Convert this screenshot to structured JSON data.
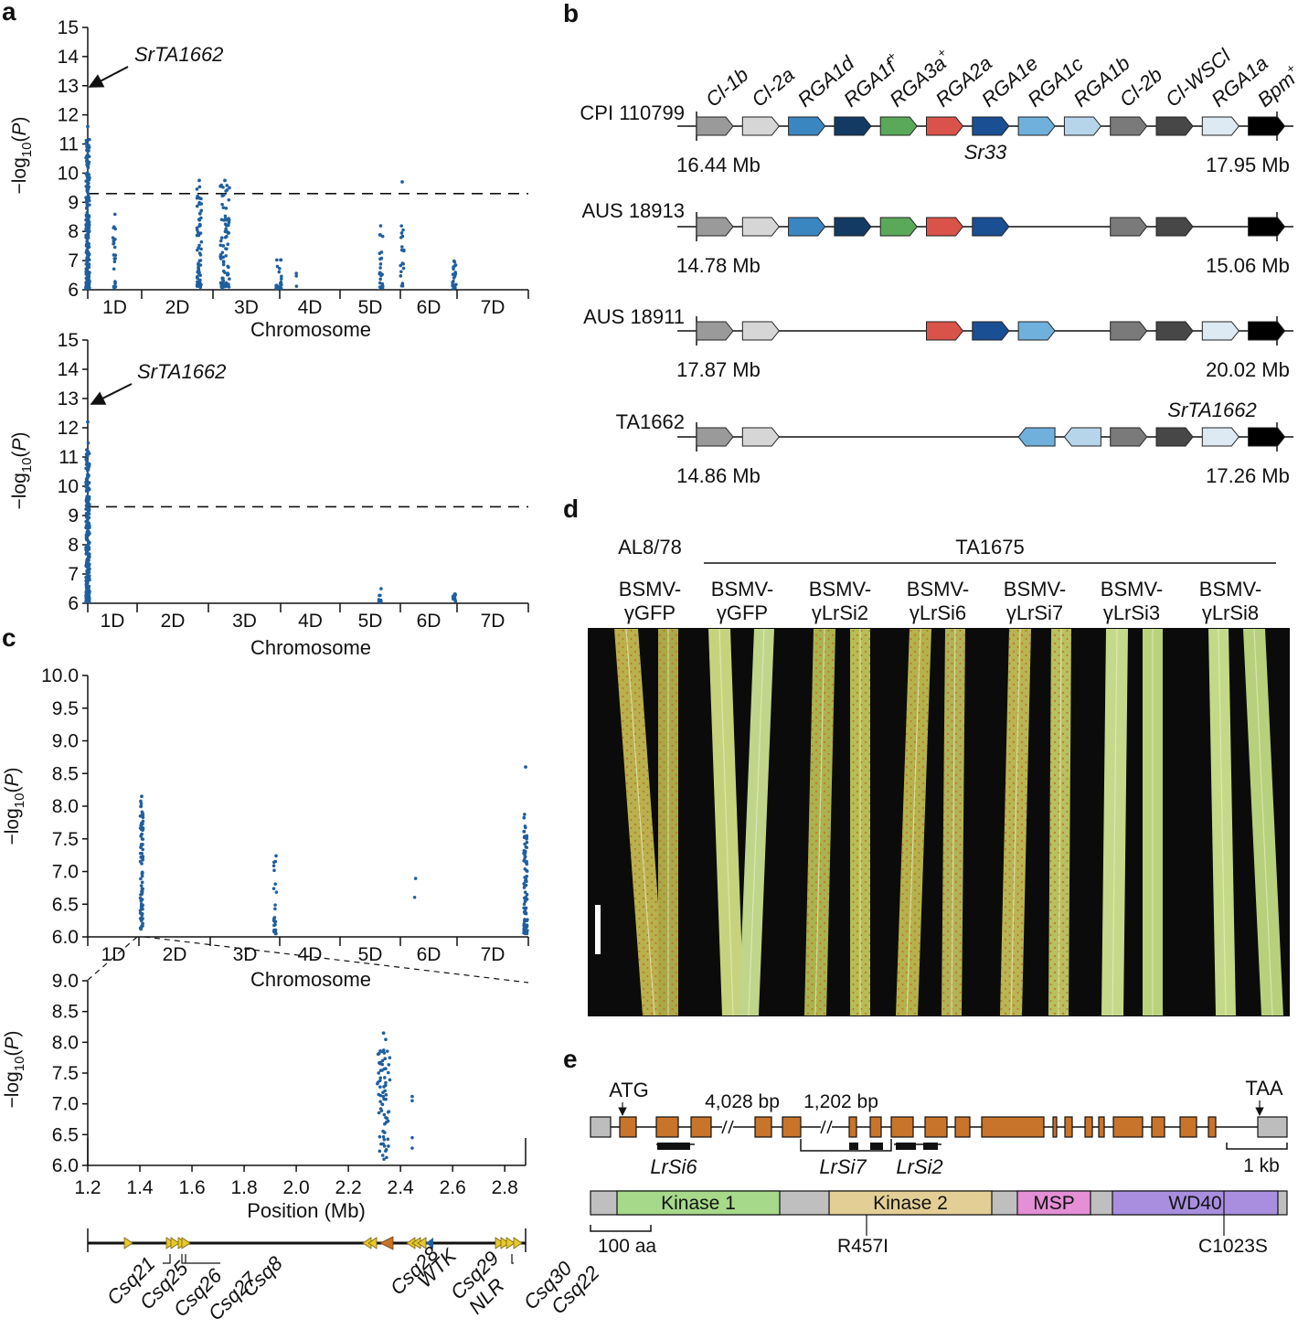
{
  "panels": {
    "a": "a",
    "b": "b",
    "c": "c",
    "d": "d",
    "e": "e"
  },
  "colors": {
    "point": "#1f5fa0",
    "orange": "#c8742a",
    "yellow": "#e6c830"
  },
  "panel_a": {
    "top": {
      "ylabel": "−log10(P)",
      "ylim": [
        6,
        15
      ],
      "yticks": [
        "6",
        "7",
        "8",
        "9",
        "10",
        "11",
        "12",
        "13",
        "14",
        "15"
      ],
      "threshold": 9.3,
      "annotation": "SrTA1662",
      "xlabel": "Chromosome",
      "chromosomes": [
        "1D",
        "2D",
        "3D",
        "4D",
        "5D",
        "6D",
        "7D"
      ]
    },
    "bottom": {
      "ylabel": "−log10(P)",
      "ylim": [
        6,
        15
      ],
      "yticks": [
        "6",
        "7",
        "8",
        "9",
        "10",
        "11",
        "12",
        "13",
        "14",
        "15"
      ],
      "threshold": 9.3,
      "annotation": "SrTA1662",
      "xlabel": "Chromosome",
      "chromosomes": [
        "1D",
        "2D",
        "3D",
        "4D",
        "5D",
        "6D",
        "7D"
      ]
    }
  },
  "panel_c": {
    "top": {
      "ylabel": "−log10(P)",
      "ylim": [
        6.0,
        10.0
      ],
      "yticks": [
        "6.0",
        "6.5",
        "7.0",
        "7.5",
        "8.0",
        "8.5",
        "9.0",
        "9.5",
        "10.0"
      ],
      "xlabel": "Chromosome",
      "chromosomes": [
        "1D",
        "2D",
        "3D",
        "4D",
        "5D",
        "6D",
        "7D"
      ]
    },
    "bottom": {
      "ylabel": "−log10(P)",
      "ylim": [
        6.0,
        9.0
      ],
      "yticks": [
        "6.0",
        "6.5",
        "7.0",
        "7.5",
        "8.0",
        "8.5",
        "9.0"
      ],
      "xlabel": "Position (Mb)",
      "xticks": [
        "1.2",
        "1.4",
        "1.6",
        "1.8",
        "2.0",
        "2.2",
        "2.4",
        "2.6",
        "2.8"
      ],
      "genes": [
        "Csq21",
        "Csq25",
        "Csq26",
        "Csq27",
        "Csq8",
        "Csq28",
        "WTK",
        "Csq29",
        "NLR",
        "Csq30",
        "Csq22"
      ]
    }
  },
  "panel_b": {
    "gene_names": [
      "Cl-1b",
      "Cl-2a",
      "RGA1d",
      "RGA1f",
      "RGA3a",
      "RGA2a",
      "RGA1e",
      "RGA1c",
      "RGA1b",
      "Cl-2b",
      "Cl-WSCl",
      "RGA1a",
      "Bpm"
    ],
    "plus_mark": "+",
    "sr33": "Sr33",
    "srta": "SrTA1662",
    "haplotypes": [
      {
        "name": "CPI 110799",
        "left": "16.44 Mb",
        "right": "17.95 Mb"
      },
      {
        "name": "AUS 18913",
        "left": "14.78 Mb",
        "right": "15.06 Mb"
      },
      {
        "name": "AUS 18911",
        "left": "17.87 Mb",
        "right": "20.02 Mb"
      },
      {
        "name": "TA1662",
        "left": "14.86 Mb",
        "right": "17.26 Mb"
      }
    ],
    "gene_colors": [
      "#9a9a9a",
      "#d6d6d6",
      "#3a86c0",
      "#123a63",
      "#5aa95a",
      "#d9534a",
      "#1a4f94",
      "#6fb0dc",
      "#b7d5ea",
      "#7a7a7a",
      "#474747",
      "#dde9f3",
      "#000000"
    ]
  },
  "panel_d": {
    "line1": "AL8/78",
    "line2": "TA1675",
    "constructs": [
      {
        "top": "BSMV-",
        "bottom": "γGFP"
      },
      {
        "top": "BSMV-",
        "bottom": "γGFP"
      },
      {
        "top": "BSMV-",
        "bottom": "γLrSi2"
      },
      {
        "top": "BSMV-",
        "bottom": "γLrSi6"
      },
      {
        "top": "BSMV-",
        "bottom": "γLrSi7"
      },
      {
        "top": "BSMV-",
        "bottom": "γLrSi3"
      },
      {
        "top": "BSMV-",
        "bottom": "γLrSi8"
      }
    ]
  },
  "panel_e": {
    "atg": "ATG",
    "taa": "TAA",
    "gap1": "4,028 bp",
    "gap2": "1,202 bp",
    "lrsi6": "LrSi6",
    "lrsi7": "LrSi7",
    "lrsi2": "LrSi2",
    "scale_kb": "1 kb",
    "scale_aa": "100 aa",
    "domains": [
      {
        "name": "Kinase 1",
        "color": "#a6d98a"
      },
      {
        "name": "Kinase 2",
        "color": "#e3cf95"
      },
      {
        "name": "MSP",
        "color": "#e48fd6"
      },
      {
        "name": "WD40",
        "color": "#a98ee0"
      }
    ],
    "mut1": "R457I",
    "mut2": "C1023S"
  }
}
